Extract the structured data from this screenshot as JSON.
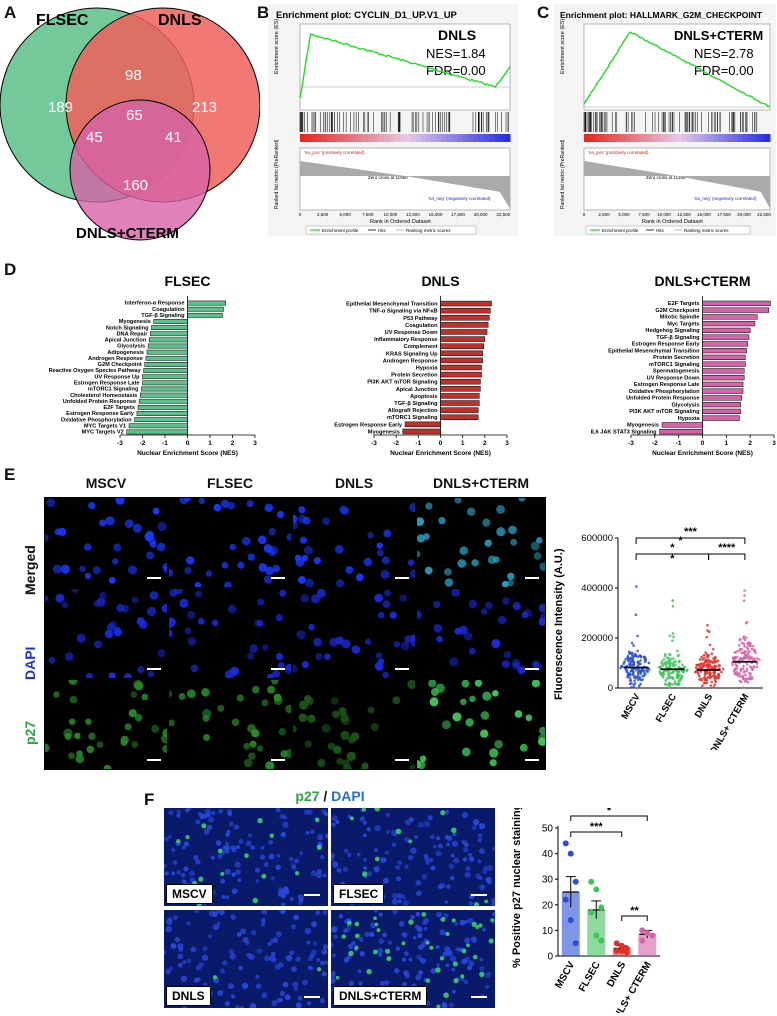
{
  "panels": {
    "A": "A",
    "B": "B",
    "C": "C",
    "D": "D",
    "E": "E",
    "F": "F"
  },
  "venn": {
    "labels": {
      "left": "FLSEC",
      "right": "DNLS",
      "bottom": "DNLS+CTERM"
    },
    "counts": {
      "left_only": "189",
      "right_only": "213",
      "bottom_only": "160",
      "left_right": "98",
      "left_bottom": "45",
      "right_bottom": "41",
      "all": "65"
    },
    "colors": {
      "left": "#5cc08a",
      "right": "#f0605c",
      "bottom": "#d663a8"
    }
  },
  "gsea_b": {
    "title": "Enrichment plot: CYCLIN_D1_UP.V1_UP",
    "group": "DNLS",
    "nes": "NES=1.84",
    "fdr": "FDR=0.00",
    "ylabel_top": "Enrichment score (ES)",
    "ylabel_bottom": "Ranked list metric (PreRanked)",
    "pos_label": "'na_pos' (positively correlated)",
    "neg_label": "'na_neg' (negatively correlated)",
    "zero_cross": "Zero cross at 11950",
    "xlabel": "Rank in Ordered Dataset",
    "xticks": [
      "0",
      "2,500",
      "5,000",
      "7,500",
      "10,000",
      "12,500",
      "15,000",
      "17,500",
      "20,000",
      "22,500"
    ],
    "yticks_top": [
      "0.4",
      "0.3",
      "0.2",
      "0.1",
      "0.0",
      "-0.1"
    ],
    "yticks_bottom": [
      "10",
      "5",
      "0",
      "-5",
      "-10",
      "-15",
      "-20",
      "-25"
    ],
    "legend": [
      "Enrichment profile",
      "Hits",
      "Ranking metric scores"
    ]
  },
  "gsea_c": {
    "title": "Enrichment plot: HALLMARK_G2M_CHECKPOINT",
    "group": "DNLS+CTERM",
    "nes": "NES=2.78",
    "fdr": "FDR=0.00",
    "ylabel_top": "Enrichment score (ES)",
    "ylabel_bottom": "Ranked list metric (PreRanked)",
    "pos_label": "'na_pos' (positively correlated)",
    "neg_label": "'na_neg' (negatively correlated)",
    "zero_cross": "Zero cross at 11188",
    "xlabel": "Rank in Ordered Dataset",
    "xticks": [
      "0",
      "2,500",
      "5,000",
      "7,500",
      "10,000",
      "12,500",
      "15,000",
      "17,500",
      "20,000",
      "22,500"
    ],
    "yticks_top": [
      "0.6",
      "0.5",
      "0.4",
      "0.3",
      "0.2",
      "0.1",
      "0.0"
    ],
    "yticks_bottom": [
      "15",
      "10",
      "5",
      "0",
      "-5",
      "-10",
      "-15",
      "-20"
    ],
    "legend": [
      "Enrichment profile",
      "Hits",
      "Ranking metric scores"
    ]
  },
  "nes_common": {
    "xlabel": "Nuclear Enrichment Score (NES)",
    "xticks": [
      "-3",
      "-2",
      "-1",
      "0",
      "1",
      "2",
      "3"
    ]
  },
  "chart_data": [
    {
      "type": "bar",
      "title": "FLSEC",
      "xlabel": "Nuclear Enrichment Score (NES)",
      "xlim": [
        -3,
        3
      ],
      "orientation": "horizontal",
      "color": "#5cc08a",
      "categories": [
        "Interferon-α Response",
        "Coagulation",
        "TGF-β Signaling",
        "Myogenesis",
        "Notch Signaling",
        "DNA Repair",
        "Apical Junction",
        "Glycolysis",
        "Adipogenesis",
        "Androgen Response",
        "G2M Checkpoint",
        "Reactive Oxygen Species Pathway",
        "UV Response Up",
        "Estrogen Response Late",
        "mTORC1 Signaling",
        "Cholesterol Homeostasis",
        "Unfolded Protein Response",
        "E2F Targets",
        "Estrogen Response Early",
        "Oxidative Phosphorylation",
        "MYC Targets V1",
        "MYC Targets V2"
      ],
      "values": [
        1.7,
        1.6,
        1.55,
        -1.5,
        -1.6,
        -1.65,
        -1.7,
        -1.75,
        -1.8,
        -1.85,
        -1.9,
        -1.95,
        -2.0,
        -2.0,
        -2.05,
        -2.1,
        -2.15,
        -2.2,
        -2.25,
        -2.35,
        -2.6,
        -2.7
      ]
    },
    {
      "type": "bar",
      "title": "DNLS",
      "xlabel": "Nuclear Enrichment Score (NES)",
      "xlim": [
        -3,
        3
      ],
      "orientation": "horizontal",
      "color": "#c0302c",
      "categories": [
        "Epithelial Mesenchymal Transition",
        "TNF-α Signaling via NFκB",
        "P53 Pathway",
        "Coagulation",
        "UV Response Down",
        "Inflammatory Response",
        "Complement",
        "KRAS Signaling Up",
        "Androgen Response",
        "Hypoxia",
        "Protein Secretion",
        "PI3K AKT mTOR Signaling",
        "Apical Junction",
        "Apoptosis",
        "TGF-β Signaling",
        "Allograft Rejection",
        "mTORC1 Signaling",
        "Estrogen Response Early",
        "Myogenesis"
      ],
      "values": [
        2.3,
        2.25,
        2.2,
        2.15,
        2.1,
        2.0,
        1.95,
        1.9,
        1.9,
        1.85,
        1.85,
        1.8,
        1.8,
        1.75,
        1.75,
        1.7,
        1.7,
        -1.6,
        -1.7
      ]
    },
    {
      "type": "bar",
      "title": "DNLS+CTERM",
      "xlabel": "Nuclear Enrichment Score (NES)",
      "xlim": [
        -3,
        3
      ],
      "orientation": "horizontal",
      "color": "#d663a8",
      "categories": [
        "E2F Targets",
        "G2M Checkpoint",
        "Mitotic Spindle",
        "Myc Targets",
        "Hedgehog Signaling",
        "TGF-β Signaling",
        "Estrogen Response Early",
        "Epithelial Mesenchymal Transition",
        "Protein Secretion",
        "mTORC1 Signaling",
        "Spermatogenesis",
        "UV Response Down",
        "Estrogen Response Late",
        "Oxidative Phosphorylation",
        "Unfolded Protein Response",
        "Glycolysis",
        "PI3K AKT mTOR Signaling",
        "Hypoxia",
        "Myogenesis",
        "IL6 JAK STAT3 Signaling"
      ],
      "values": [
        2.85,
        2.78,
        2.3,
        2.2,
        2.0,
        1.95,
        1.9,
        1.85,
        1.8,
        1.8,
        1.75,
        1.75,
        1.7,
        1.7,
        1.65,
        1.6,
        1.6,
        1.55,
        -1.7,
        -1.8
      ]
    },
    {
      "type": "scatter",
      "ylabel": "Fluorescence Intensity (A.U.)",
      "categories": [
        "MSCV",
        "FLSEC",
        "DNLS",
        "DNLS+ CTERM"
      ],
      "yticks": [
        "0",
        "200000",
        "400000",
        "600000"
      ],
      "ylim": [
        0,
        600000
      ],
      "means": [
        82000,
        75000,
        72000,
        105000
      ],
      "max": [
        480000,
        350000,
        285000,
        390000
      ],
      "colors": [
        "#2a4fd6",
        "#3ec45a",
        "#e0302c",
        "#d663a8"
      ],
      "significance": [
        "***",
        "*",
        "*",
        "*",
        "****"
      ]
    },
    {
      "type": "bar",
      "ylabel": "% Positive p27 nuclear staining",
      "categories": [
        "MSCV",
        "FLSEC",
        "DNLS",
        "DNLS+ CTERM"
      ],
      "ylim": [
        0,
        50
      ],
      "yticks": [
        "0",
        "10",
        "20",
        "30",
        "40",
        "50"
      ],
      "values": [
        25,
        18,
        3,
        8.5
      ],
      "errors": [
        6,
        3.5,
        1,
        1.5
      ],
      "points": [
        [
          44,
          40,
          29,
          22,
          14,
          5
        ],
        [
          29,
          26,
          19,
          17,
          8,
          6
        ],
        [
          5,
          4,
          3,
          2,
          2,
          1.5
        ],
        [
          10,
          9,
          8,
          6
        ]
      ],
      "colors": [
        "#2a4fd6",
        "#3ec45a",
        "#e0302c",
        "#d663a8"
      ],
      "significance": [
        "***",
        "*",
        "**"
      ]
    }
  ],
  "microscopy_e": {
    "columns": [
      "MSCV",
      "FLSEC",
      "DNLS",
      "DNLS+CTERM"
    ],
    "rows": [
      {
        "label": "Merged",
        "color": "#000000"
      },
      {
        "label": "DAPI",
        "color": "#2233cc"
      },
      {
        "label": "p27",
        "color": "#2ea043"
      }
    ]
  },
  "microscopy_f": {
    "title_p27": "p27",
    "title_sep": " / ",
    "title_dapi": "DAPI",
    "title_p27_color": "#2ea043",
    "title_dapi_color": "#2a6fd0",
    "labels": [
      "MSCV",
      "FLSEC",
      "DNLS",
      "DNLS+CTERM"
    ]
  }
}
